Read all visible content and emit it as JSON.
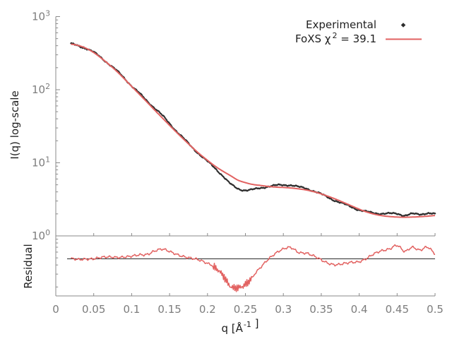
{
  "figure": {
    "background": "#ffffff",
    "text_color": "#1f1f1f",
    "tick_color": "#7d7d7d",
    "axis_color": "#8a8a8a",
    "legend": {
      "entries": [
        {
          "label": "Experimental",
          "marker": "diamond",
          "color": "#2e2e2e"
        },
        {
          "label_parts": [
            {
              "t": "FoXS χ"
            },
            {
              "sup": "2"
            },
            {
              "t": " = 39.1"
            }
          ],
          "label_plain": "FoXS χ2 = 39.1",
          "chi_square": "39.1",
          "marker": "line",
          "color": "#e26261"
        }
      ]
    }
  },
  "chart_data": {
    "type": "line",
    "title": "",
    "xlabel_parts": [
      {
        "t": "q [Å"
      },
      {
        "sup": "-1"
      },
      {
        "t": " ]"
      }
    ],
    "xlabel_plain": "q [Å-1]",
    "xlim": [
      0,
      0.5
    ],
    "xticks": {
      "values": [
        0,
        0.05,
        0.1,
        0.15,
        0.2,
        0.25,
        0.3,
        0.35,
        0.4,
        0.45,
        0.5
      ],
      "labels": [
        "0",
        "0.05",
        "0.1",
        "0.15",
        "0.2",
        "0.25",
        "0.3",
        "0.35",
        "0.4",
        "0.45",
        "0.5"
      ]
    },
    "x": [
      0.02,
      0.03,
      0.04,
      0.05,
      0.06,
      0.07,
      0.08,
      0.09,
      0.1,
      0.11,
      0.12,
      0.13,
      0.14,
      0.15,
      0.16,
      0.17,
      0.18,
      0.19,
      0.2,
      0.21,
      0.22,
      0.23,
      0.24,
      0.25,
      0.26,
      0.27,
      0.28,
      0.29,
      0.3,
      0.31,
      0.32,
      0.33,
      0.34,
      0.35,
      0.36,
      0.37,
      0.38,
      0.39,
      0.4,
      0.41,
      0.42,
      0.43,
      0.44,
      0.45,
      0.46,
      0.47,
      0.48,
      0.49,
      0.5
    ],
    "panels": [
      {
        "id": "intensity",
        "ylabel": "I(q) log-scale",
        "yscale": "log",
        "ylim": [
          1,
          1000
        ],
        "ytick_exponents": [
          3,
          2,
          1,
          0
        ],
        "series": [
          {
            "name": "Experimental",
            "style": "points",
            "marker": "diamond",
            "color": "#2e2e2e",
            "values": [
              420,
              398,
              368,
              324,
              273,
              225,
              183,
              145,
              113,
              89.6,
              70.7,
              56.7,
              44.8,
              34.5,
              26.6,
              20.7,
              16.2,
              12.9,
              10.4,
              8.42,
              6.66,
              5.16,
              4.44,
              4.23,
              4.29,
              4.53,
              4.75,
              4.88,
              4.97,
              4.95,
              4.66,
              4.46,
              4.11,
              3.71,
              3.33,
              2.99,
              2.72,
              2.49,
              2.27,
              2.13,
              2.06,
              2.02,
              2.01,
              2.02,
              1.91,
              1.99,
              1.98,
              2.05,
              1.98
            ]
          },
          {
            "name": "FoXS fit",
            "style": "line",
            "color": "#e26261",
            "chi_square": 39.1,
            "values": [
              420,
              402,
              368,
              322,
              270,
              222,
              180,
              142,
              111,
              87,
              68,
              53,
              41.5,
              32.5,
              25.6,
              20.3,
              16.2,
              13.1,
              10.8,
              9.0,
              7.7,
              6.7,
              5.8,
              5.35,
              5.05,
              4.9,
              4.75,
              4.65,
              4.6,
              4.52,
              4.4,
              4.25,
              4.03,
              3.75,
              3.45,
              3.15,
              2.85,
              2.57,
              2.32,
              2.12,
              1.98,
              1.89,
              1.84,
              1.81,
              1.8,
              1.81,
              1.83,
              1.86,
              1.9
            ]
          }
        ]
      },
      {
        "id": "residual",
        "ylabel": "Residual",
        "yscale": "linear",
        "ylim": [
          0.68,
          1.2
        ],
        "reference_line": 1.0,
        "minor_tick_values": [
          0.9,
          0.8,
          0.7,
          0.6,
          0.5,
          0.4,
          0.3,
          0.2
        ],
        "series": [
          {
            "name": "Residual (experimental / fit)",
            "style": "line",
            "color": "#e26261",
            "values": [
              1.0,
              0.99,
              1.0,
              1.005,
              1.01,
              1.012,
              1.015,
              1.02,
              1.02,
              1.03,
              1.04,
              1.07,
              1.08,
              1.06,
              1.04,
              1.02,
              1.0,
              0.985,
              0.965,
              0.935,
              0.865,
              0.77,
              0.765,
              0.79,
              0.85,
              0.925,
              1.0,
              1.05,
              1.08,
              1.095,
              1.06,
              1.05,
              1.02,
              0.99,
              0.965,
              0.95,
              0.955,
              0.97,
              0.98,
              1.005,
              1.04,
              1.07,
              1.09,
              1.115,
              1.06,
              1.1,
              1.08,
              1.1,
              1.04
            ]
          }
        ]
      }
    ]
  }
}
